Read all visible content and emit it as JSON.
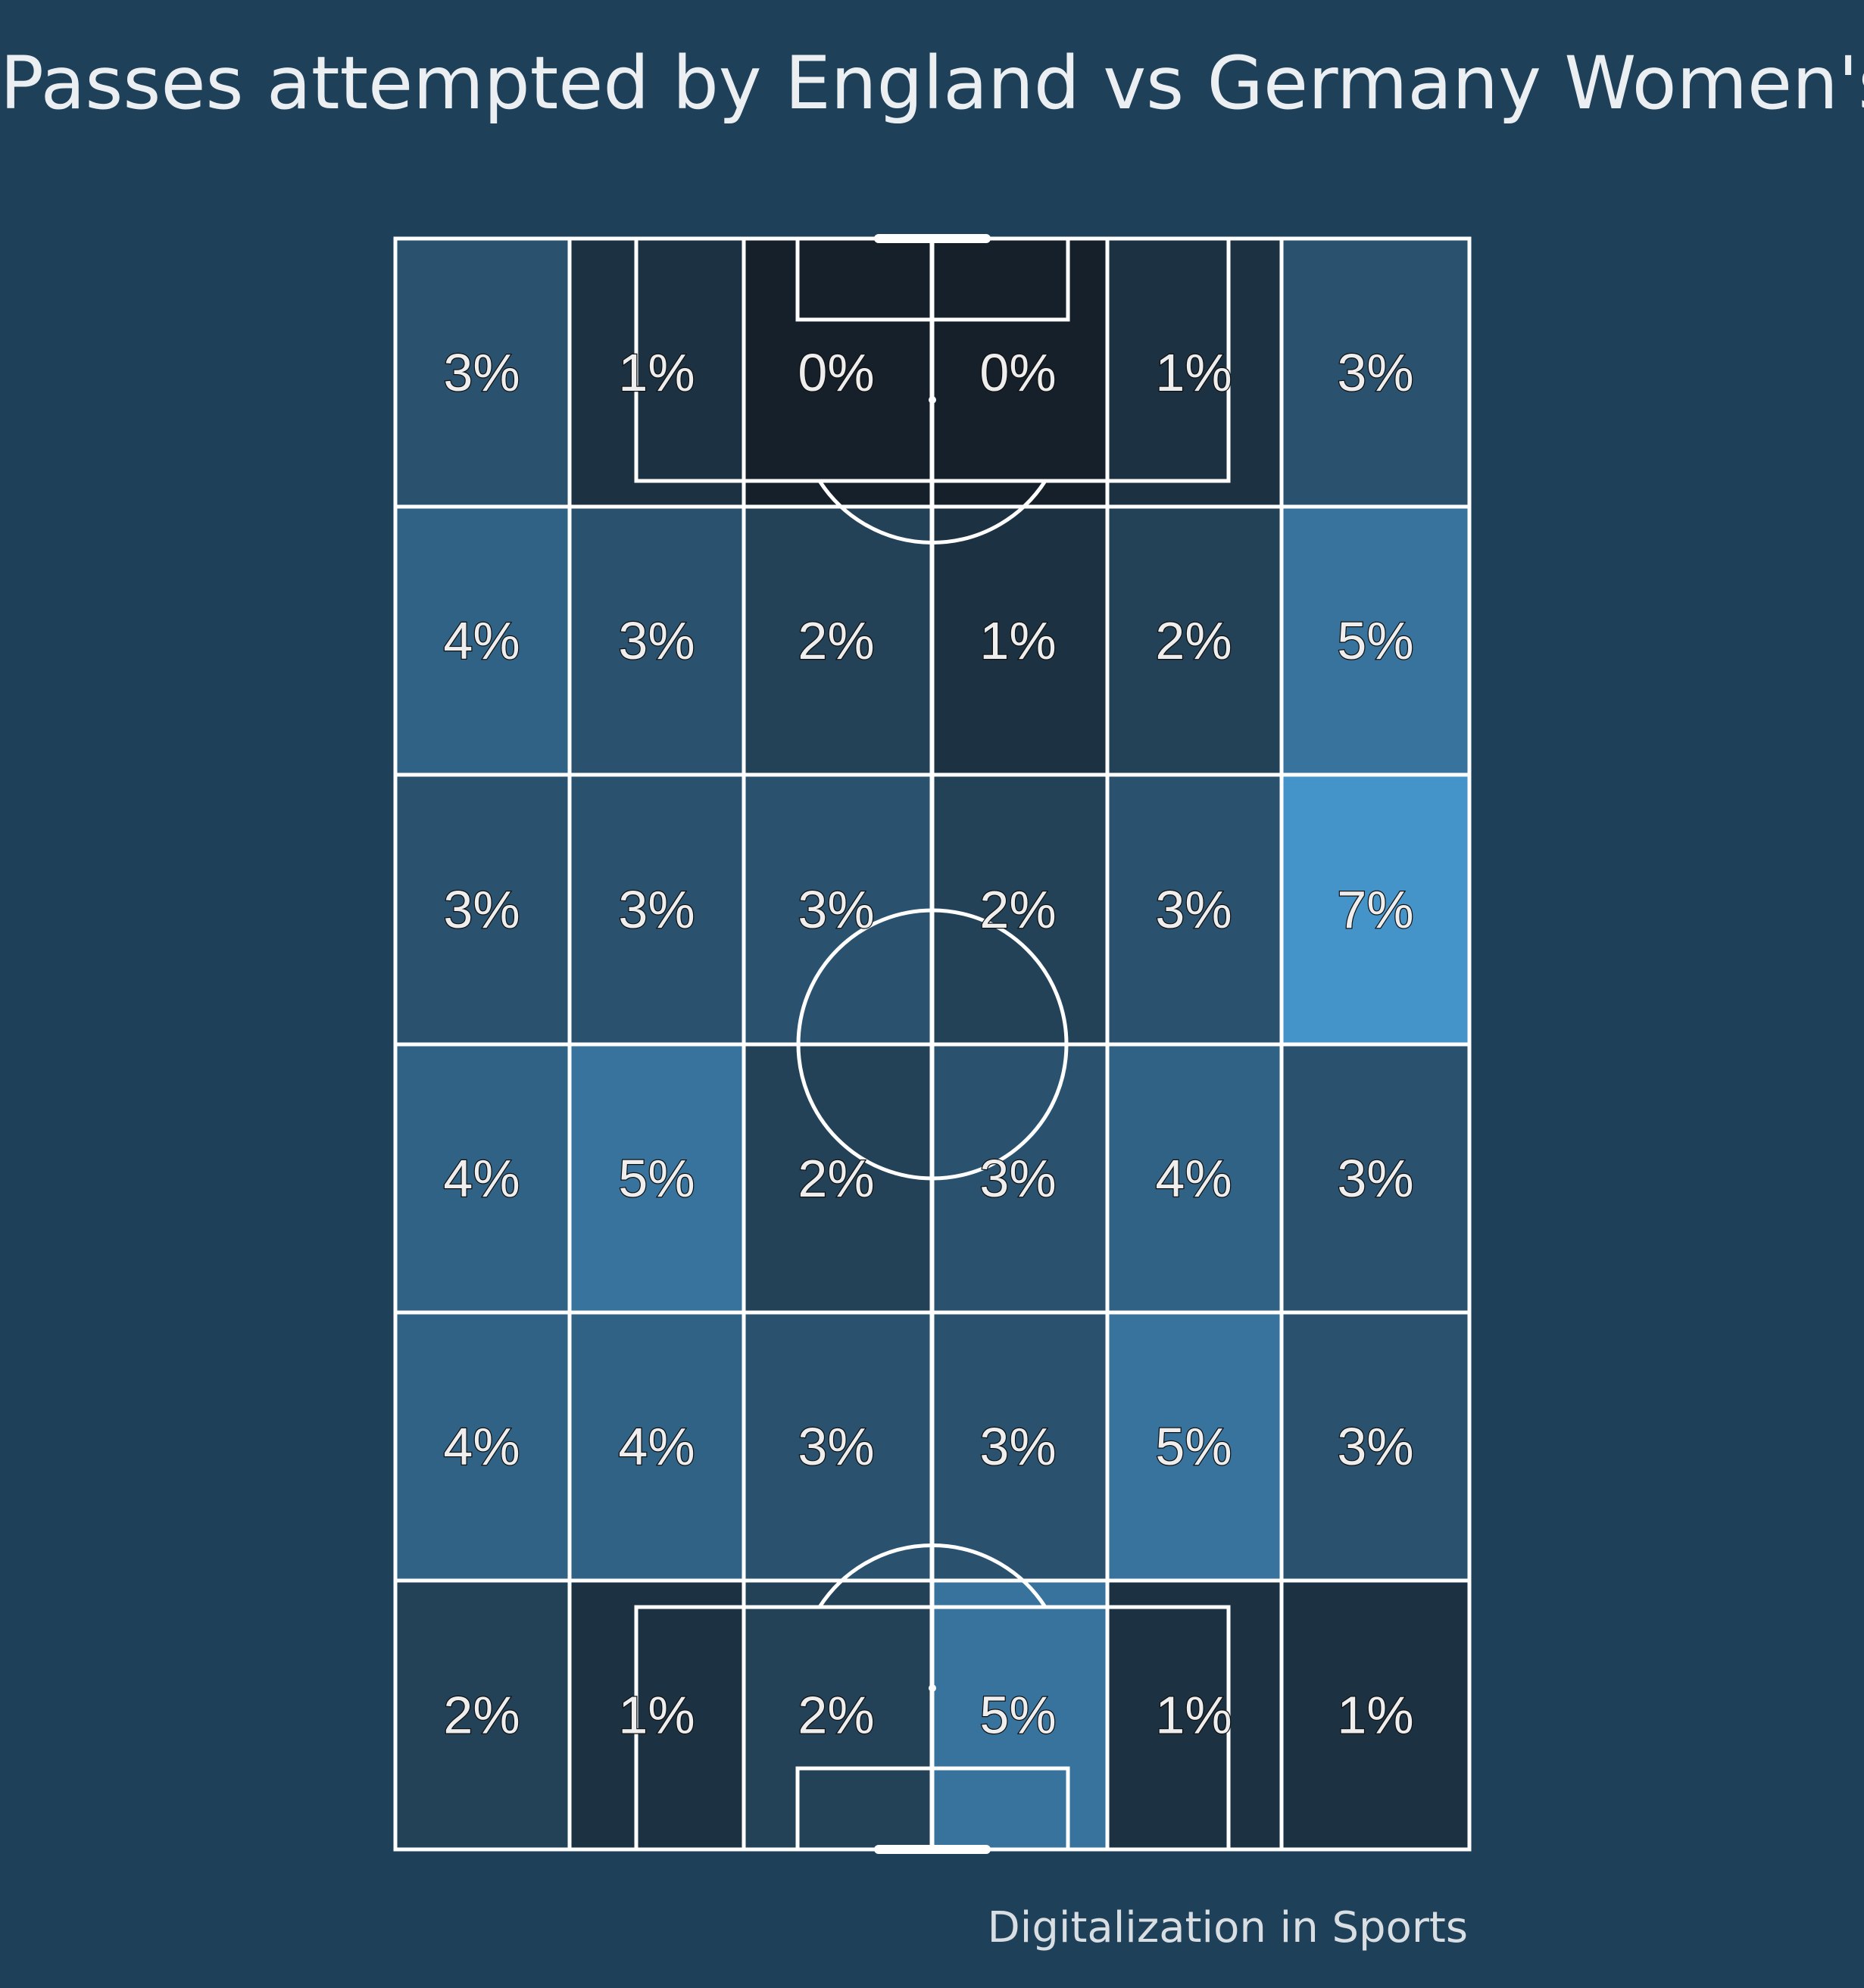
{
  "header": {
    "title": "Passes attempted by England vs Germany Women's"
  },
  "footer": {
    "credit": "Digitalization in Sports"
  },
  "colors": {
    "background": "#1f4059",
    "low": "#15202a",
    "high": "#4594c9",
    "lines": "#ffffff"
  },
  "chart_data": {
    "type": "heatmap",
    "title": "Passes attempted by England vs Germany Women's",
    "unit": "%",
    "rows": 6,
    "cols": 6,
    "values": [
      [
        3,
        1,
        0,
        0,
        1,
        3
      ],
      [
        4,
        3,
        2,
        1,
        2,
        5
      ],
      [
        3,
        3,
        3,
        2,
        3,
        7
      ],
      [
        4,
        5,
        2,
        3,
        4,
        3
      ],
      [
        4,
        4,
        3,
        3,
        5,
        3
      ],
      [
        2,
        1,
        2,
        5,
        1,
        1
      ]
    ],
    "labels": [
      [
        "3%",
        "1%",
        "0%",
        "0%",
        "1%",
        "3%"
      ],
      [
        "4%",
        "3%",
        "2%",
        "1%",
        "2%",
        "5%"
      ],
      [
        "3%",
        "3%",
        "3%",
        "2%",
        "3%",
        "7%"
      ],
      [
        "4%",
        "5%",
        "2%",
        "3%",
        "4%",
        "3%"
      ],
      [
        "4%",
        "4%",
        "3%",
        "3%",
        "5%",
        "3%"
      ],
      [
        "2%",
        "1%",
        "2%",
        "5%",
        "1%",
        "1%"
      ]
    ],
    "scale": [
      0,
      7
    ]
  }
}
